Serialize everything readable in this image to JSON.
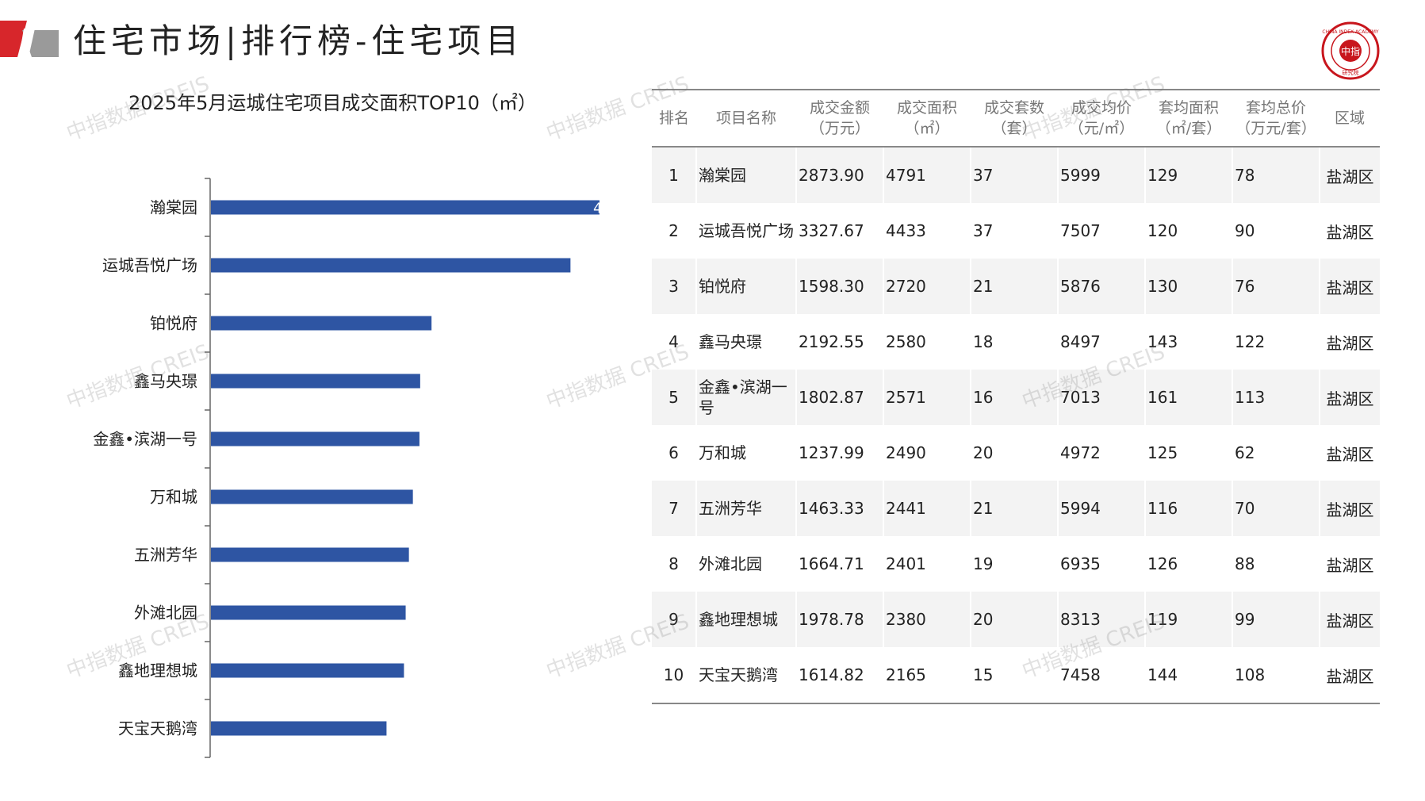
{
  "header": {
    "title": "住宅市场|排行榜-住宅项目",
    "seal_text_top": "CHINA INDEX ACADEMY",
    "seal_text_center": "中指",
    "seal_text_bottom": "研究院"
  },
  "colors": {
    "bar": "#2e55a3",
    "logo_red": "#d7262b",
    "logo_grey": "#9a9a9a",
    "seal_red": "#c8161d"
  },
  "chart_data": {
    "type": "bar",
    "orientation": "horizontal",
    "title": "2025年5月运城住宅项目成交面积TOP10（㎡）",
    "categories": [
      "瀚棠园",
      "运城吾悦广场",
      "铂悦府",
      "鑫马央璟",
      "金鑫•滨湖一号",
      "万和城",
      "五洲芳华",
      "外滩北园",
      "鑫地理想城",
      "天宝天鹅湾"
    ],
    "values": [
      4791,
      4433,
      2720,
      2580,
      2571,
      2490,
      2441,
      2401,
      2380,
      2165
    ],
    "xlim": [
      0,
      4791
    ],
    "visible_data_label": "4",
    "grid": false,
    "legend": "none"
  },
  "table": {
    "headers": [
      [
        "排名"
      ],
      [
        "项目名称"
      ],
      [
        "成交金额",
        "（万元）"
      ],
      [
        "成交面积",
        "（㎡）"
      ],
      [
        "成交套数",
        "（套）"
      ],
      [
        "成交均价",
        "（元/㎡）"
      ],
      [
        "套均面积",
        "（㎡/套）"
      ],
      [
        "套均总价",
        "（万元/套）"
      ],
      [
        "区域"
      ]
    ],
    "rows": [
      [
        "1",
        "瀚棠园",
        "2873.90",
        "4791",
        "37",
        "5999",
        "129",
        "78",
        "盐湖区"
      ],
      [
        "2",
        "运城吾悦广场",
        "3327.67",
        "4433",
        "37",
        "7507",
        "120",
        "90",
        "盐湖区"
      ],
      [
        "3",
        "铂悦府",
        "1598.30",
        "2720",
        "21",
        "5876",
        "130",
        "76",
        "盐湖区"
      ],
      [
        "4",
        "鑫马央璟",
        "2192.55",
        "2580",
        "18",
        "8497",
        "143",
        "122",
        "盐湖区"
      ],
      [
        "5",
        "金鑫•滨湖一号",
        "1802.87",
        "2571",
        "16",
        "7013",
        "161",
        "113",
        "盐湖区"
      ],
      [
        "6",
        "万和城",
        "1237.99",
        "2490",
        "20",
        "4972",
        "125",
        "62",
        "盐湖区"
      ],
      [
        "7",
        "五洲芳华",
        "1463.33",
        "2441",
        "21",
        "5994",
        "116",
        "70",
        "盐湖区"
      ],
      [
        "8",
        "外滩北园",
        "1664.71",
        "2401",
        "19",
        "6935",
        "126",
        "88",
        "盐湖区"
      ],
      [
        "9",
        "鑫地理想城",
        "1978.78",
        "2380",
        "20",
        "8313",
        "119",
        "99",
        "盐湖区"
      ],
      [
        "10",
        "天宝天鹅湾",
        "1614.82",
        "2165",
        "15",
        "7458",
        "144",
        "108",
        "盐湖区"
      ]
    ]
  },
  "watermark": "中指数据 CREIS"
}
